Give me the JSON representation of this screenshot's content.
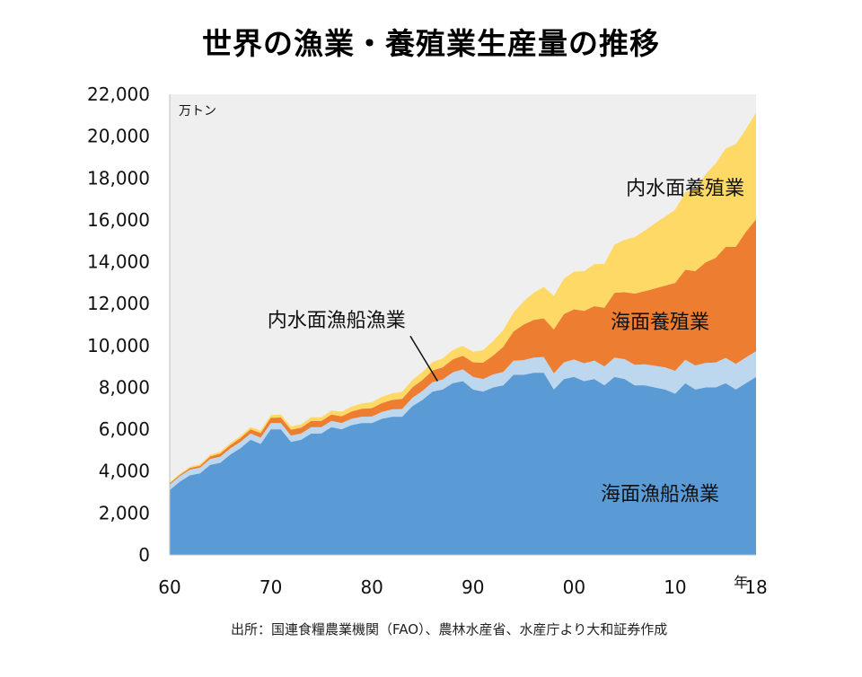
{
  "title": "世界の漁業・養殖業生産量の推移",
  "source": "出所：国連食糧農業機関（FAO）、農林水産省、水産庁より大和証券作成",
  "chart_data": {
    "type": "area",
    "stacked": true,
    "title": "世界の漁業・養殖業生産量の推移",
    "unit_label": "万トン",
    "xlabel_suffix": "年",
    "x": [
      1960,
      1961,
      1962,
      1963,
      1964,
      1965,
      1966,
      1967,
      1968,
      1969,
      1970,
      1971,
      1972,
      1973,
      1974,
      1975,
      1976,
      1977,
      1978,
      1979,
      1980,
      1981,
      1982,
      1983,
      1984,
      1985,
      1986,
      1987,
      1988,
      1989,
      1990,
      1991,
      1992,
      1993,
      1994,
      1995,
      1996,
      1997,
      1998,
      1999,
      2000,
      2001,
      2002,
      2003,
      2004,
      2005,
      2006,
      2007,
      2008,
      2009,
      2010,
      2011,
      2012,
      2013,
      2014,
      2015,
      2016,
      2017,
      2018
    ],
    "x_tick_labels": [
      "60",
      "70",
      "80",
      "90",
      "00",
      "10",
      "18"
    ],
    "x_tick_values": [
      1960,
      1970,
      1980,
      1990,
      2000,
      2010,
      2018
    ],
    "ylim": [
      0,
      22000
    ],
    "y_ticks": [
      "0",
      "2,000",
      "4,000",
      "6,000",
      "8,000",
      "10,000",
      "12,000",
      "14,000",
      "16,000",
      "18,000",
      "20,000",
      "22,000"
    ],
    "series": [
      {
        "name": "海面漁船漁業",
        "color": "#5B9BD5",
        "values": [
          3100,
          3500,
          3800,
          3900,
          4300,
          4400,
          4800,
          5100,
          5500,
          5300,
          6000,
          6000,
          5400,
          5500,
          5800,
          5800,
          6100,
          6000,
          6200,
          6300,
          6300,
          6500,
          6600,
          6600,
          7100,
          7400,
          7800,
          7900,
          8200,
          8300,
          7900,
          7800,
          8000,
          8100,
          8600,
          8600,
          8700,
          8700,
          7900,
          8400,
          8500,
          8300,
          8400,
          8100,
          8500,
          8400,
          8100,
          8100,
          8000,
          7900,
          7700,
          8200,
          7900,
          8000,
          8000,
          8200,
          7900,
          8200,
          8500
        ]
      },
      {
        "name": "内水面漁船漁業",
        "color": "#BDD7EE",
        "values": [
          260,
          260,
          270,
          270,
          280,
          290,
          290,
          300,
          300,
          300,
          300,
          300,
          300,
          300,
          300,
          300,
          300,
          300,
          300,
          300,
          310,
          330,
          350,
          370,
          400,
          430,
          450,
          480,
          520,
          560,
          600,
          600,
          620,
          640,
          670,
          700,
          720,
          750,
          770,
          800,
          830,
          850,
          880,
          900,
          920,
          950,
          980,
          1000,
          1030,
          1060,
          1090,
          1120,
          1150,
          1170,
          1190,
          1210,
          1220,
          1230,
          1230
        ]
      },
      {
        "name": "海面養殖業",
        "color": "#ED7D31",
        "values": [
          60,
          60,
          80,
          90,
          120,
          150,
          160,
          180,
          200,
          220,
          250,
          260,
          280,
          280,
          300,
          300,
          300,
          320,
          350,
          380,
          400,
          420,
          450,
          480,
          500,
          530,
          560,
          580,
          620,
          650,
          700,
          780,
          900,
          1200,
          1400,
          1700,
          1800,
          1850,
          2100,
          2300,
          2400,
          2500,
          2600,
          2800,
          3100,
          3200,
          3400,
          3500,
          3700,
          3900,
          4200,
          4300,
          4500,
          4800,
          5000,
          5300,
          5600,
          6000,
          6300
        ]
      },
      {
        "name": "内水面養殖業",
        "color": "#FFD966",
        "values": [
          40,
          50,
          60,
          70,
          80,
          90,
          100,
          100,
          110,
          120,
          130,
          140,
          150,
          160,
          180,
          180,
          200,
          220,
          240,
          260,
          280,
          300,
          320,
          340,
          360,
          380,
          400,
          420,
          450,
          480,
          500,
          600,
          700,
          800,
          900,
          1100,
          1300,
          1500,
          1600,
          1700,
          1800,
          1900,
          2000,
          2100,
          2300,
          2500,
          2700,
          2900,
          3100,
          3300,
          3500,
          3700,
          3900,
          4200,
          4500,
          4700,
          4900,
          4900,
          5100
        ]
      }
    ],
    "annotations": [
      {
        "text": "内水面養殖業",
        "series": "内水面養殖業"
      },
      {
        "text": "海面養殖業",
        "series": "海面養殖業"
      },
      {
        "text": "内水面漁船漁業",
        "series": "内水面漁船漁業",
        "with_leader_line": true
      },
      {
        "text": "海面漁船漁業",
        "series": "海面漁船漁業"
      }
    ],
    "plot_background": "#EFEFEF",
    "grid": false,
    "legend": "none"
  }
}
